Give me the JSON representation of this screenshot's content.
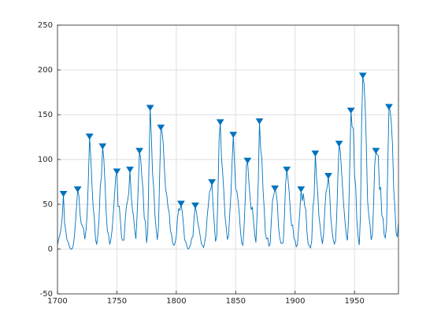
{
  "chart_data": {
    "type": "line",
    "color": "#0072bd",
    "x": [
      1700,
      1701,
      1702,
      1703,
      1704,
      1705,
      1706,
      1707,
      1708,
      1709,
      1710,
      1711,
      1712,
      1713,
      1714,
      1715,
      1716,
      1717,
      1718,
      1719,
      1720,
      1721,
      1722,
      1723,
      1724,
      1725,
      1726,
      1727,
      1728,
      1729,
      1730,
      1731,
      1732,
      1733,
      1734,
      1735,
      1736,
      1737,
      1738,
      1739,
      1740,
      1741,
      1742,
      1743,
      1744,
      1745,
      1746,
      1747,
      1748,
      1749,
      1750,
      1751,
      1752,
      1753,
      1754,
      1755,
      1756,
      1757,
      1758,
      1759,
      1760,
      1761,
      1762,
      1763,
      1764,
      1765,
      1766,
      1767,
      1768,
      1769,
      1770,
      1771,
      1772,
      1773,
      1774,
      1775,
      1776,
      1777,
      1778,
      1779,
      1780,
      1781,
      1782,
      1783,
      1784,
      1785,
      1786,
      1787,
      1788,
      1789,
      1790,
      1791,
      1792,
      1793,
      1794,
      1795,
      1796,
      1797,
      1798,
      1799,
      1800,
      1801,
      1802,
      1803,
      1804,
      1805,
      1806,
      1807,
      1808,
      1809,
      1810,
      1811,
      1812,
      1813,
      1814,
      1815,
      1816,
      1817,
      1818,
      1819,
      1820,
      1821,
      1822,
      1823,
      1824,
      1825,
      1826,
      1827,
      1828,
      1829,
      1830,
      1831,
      1832,
      1833,
      1834,
      1835,
      1836,
      1837,
      1838,
      1839,
      1840,
      1841,
      1842,
      1843,
      1844,
      1845,
      1846,
      1847,
      1848,
      1849,
      1850,
      1851,
      1852,
      1853,
      1854,
      1855,
      1856,
      1857,
      1858,
      1859,
      1860,
      1861,
      1862,
      1863,
      1864,
      1865,
      1866,
      1867,
      1868,
      1869,
      1870,
      1871,
      1872,
      1873,
      1874,
      1875,
      1876,
      1877,
      1878,
      1879,
      1880,
      1881,
      1882,
      1883,
      1884,
      1885,
      1886,
      1887,
      1888,
      1889,
      1890,
      1891,
      1892,
      1893,
      1894,
      1895,
      1896,
      1897,
      1898,
      1899,
      1900,
      1901,
      1902,
      1903,
      1904,
      1905,
      1906,
      1907,
      1908,
      1909,
      1910,
      1911,
      1912,
      1913,
      1914,
      1915,
      1916,
      1917,
      1918,
      1919,
      1920,
      1921,
      1922,
      1923,
      1924,
      1925,
      1926,
      1927,
      1928,
      1929,
      1930,
      1931,
      1932,
      1933,
      1934,
      1935,
      1936,
      1937,
      1938,
      1939,
      1940,
      1941,
      1942,
      1943,
      1944,
      1945,
      1946,
      1947,
      1948,
      1949,
      1950,
      1951,
      1952,
      1953,
      1954,
      1955,
      1956,
      1957,
      1958,
      1959,
      1960,
      1961,
      1962,
      1963,
      1964,
      1965,
      1966,
      1967,
      1968,
      1969,
      1970,
      1971,
      1972,
      1973,
      1974,
      1975,
      1976,
      1977,
      1978,
      1979,
      1980,
      1981,
      1982,
      1983,
      1984,
      1985,
      1986,
      1987
    ],
    "values": [
      5,
      11,
      16,
      23,
      36,
      61,
      29,
      20,
      10,
      8,
      3,
      0,
      0,
      2,
      11,
      27,
      47,
      66,
      60,
      39,
      28,
      26,
      22,
      11,
      21,
      40,
      78,
      125,
      103,
      73,
      47,
      35,
      11,
      5,
      16,
      34,
      70,
      81,
      114,
      101,
      73,
      40,
      20,
      16,
      5,
      11,
      22,
      40,
      60,
      80.9,
      86,
      47.7,
      47.8,
      30.7,
      12.2,
      9.6,
      10.2,
      32.4,
      47.6,
      54,
      62.9,
      88,
      61.2,
      45.1,
      36.4,
      20.9,
      11.4,
      37.8,
      69.8,
      109,
      100.8,
      81.6,
      66.5,
      34.8,
      30.6,
      7,
      19.8,
      92.5,
      157,
      125.9,
      84.8,
      68.1,
      38.5,
      22.8,
      10.2,
      24.1,
      82.9,
      135,
      130.9,
      118.1,
      89.9,
      66.6,
      60,
      46.9,
      41,
      21.3,
      16,
      6.4,
      4.1,
      6.8,
      14.5,
      34,
      45,
      43.1,
      50,
      42.2,
      28.1,
      10.1,
      8.1,
      2.5,
      0,
      1.4,
      5,
      12.2,
      13.9,
      35.4,
      48,
      41.1,
      30.1,
      23.9,
      15.6,
      6.6,
      4,
      1.8,
      8.5,
      16.6,
      36.3,
      49.6,
      64.2,
      67,
      74,
      47.8,
      27.5,
      8.5,
      13.2,
      56.9,
      121.5,
      141,
      103.2,
      85.7,
      64.6,
      36.7,
      24.2,
      10.7,
      15,
      40.1,
      61.5,
      98.5,
      127,
      96.3,
      66.6,
      64.5,
      54.1,
      39,
      20.6,
      6.7,
      4.3,
      22.7,
      54.8,
      93.8,
      98,
      77.2,
      59.1,
      44,
      47,
      30.5,
      16.3,
      7.3,
      37.6,
      74,
      142,
      111.2,
      101.6,
      66.2,
      44.7,
      17,
      11.3,
      12.4,
      3.4,
      6,
      32.3,
      54.3,
      59.7,
      67,
      63.5,
      52.2,
      25.4,
      13.1,
      6.8,
      6.3,
      7.1,
      35.6,
      73,
      88,
      78,
      64,
      41.8,
      26.2,
      26.7,
      12.1,
      9.5,
      2.7,
      5,
      24.4,
      42,
      66,
      53.8,
      62,
      48.5,
      43.9,
      18.6,
      5.7,
      3.6,
      1.4,
      9.6,
      47.4,
      57.1,
      106,
      80.6,
      63.6,
      37.6,
      26.1,
      14.2,
      5.8,
      16.7,
      44.3,
      63.9,
      69,
      81,
      64.9,
      35.7,
      21.2,
      11.1,
      5.7,
      8.7,
      36.1,
      79.7,
      117,
      109.6,
      88.8,
      67.8,
      47.5,
      30.6,
      16.3,
      9.6,
      33.2,
      92.6,
      154,
      136.3,
      134.7,
      83.9,
      69.4,
      31.5,
      13.9,
      4.4,
      38,
      141.7,
      193,
      184.8,
      159,
      112.3,
      53.9,
      37.5,
      27.9,
      10.2,
      15.1,
      47,
      93.8,
      109,
      105.5,
      104.5,
      66.6,
      68.9,
      38,
      34.5,
      15.5,
      12.6,
      27.5,
      92.5,
      158,
      154.6,
      140.4,
      115.9,
      66.6,
      45.9,
      17.9,
      13.4,
      29.2
    ],
    "peaks": {
      "marker": "v",
      "x": [
        1705,
        1717,
        1727,
        1738,
        1750,
        1761,
        1769,
        1778,
        1787,
        1804,
        1816,
        1830,
        1837,
        1848,
        1860,
        1870,
        1883,
        1893,
        1905,
        1917,
        1928,
        1937,
        1947,
        1957,
        1968,
        1979
      ],
      "values": [
        61,
        66,
        125,
        114,
        86,
        88,
        109,
        157,
        135,
        50,
        48,
        74,
        141,
        127,
        98,
        142,
        67,
        88,
        66,
        106,
        81,
        117,
        154,
        193,
        109,
        158
      ]
    },
    "xlim": [
      1700,
      1987
    ],
    "xticks": [
      1700,
      1750,
      1800,
      1850,
      1900,
      1950
    ],
    "ylim": [
      -50,
      250
    ],
    "yticks": [
      -50,
      0,
      50,
      100,
      150,
      200,
      250
    ],
    "grid": true
  }
}
